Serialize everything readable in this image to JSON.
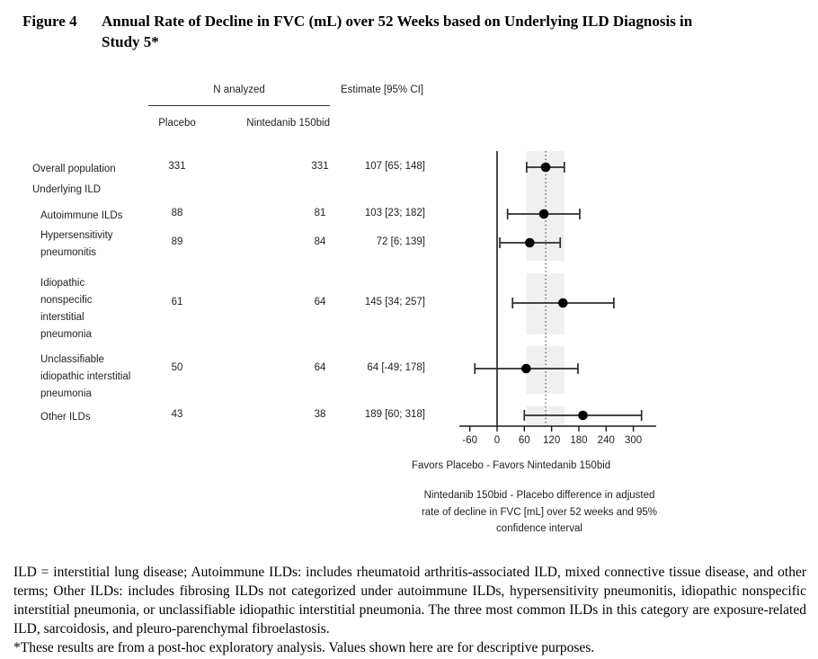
{
  "title": {
    "prefix": "Figure 4",
    "text": "Annual Rate of Decline in FVC (mL) over 52 Weeks based on Underlying ILD Diagnosis in\nStudy 5*"
  },
  "table": {
    "group_header": "N analyzed",
    "estimate_header": "Estimate [95% CI]",
    "col_placebo": "Placebo",
    "col_nintedanib": "Nintedanib 150bid",
    "section_label": "Underlying ILD"
  },
  "chart_data": {
    "type": "forest",
    "title": "Annual Rate of Decline in FVC (mL) over 52 Weeks based on Underlying ILD Diagnosis in Study 5*",
    "x_ticks": [
      -60,
      0,
      60,
      120,
      180,
      240,
      300
    ],
    "xlim": [
      -85,
      350
    ],
    "reference_line": 0,
    "overall_dotted_line": 107,
    "overall_shaded_band": [
      65,
      148
    ],
    "rows": [
      {
        "label": "Overall population",
        "placebo_n": "331",
        "nintedanib_n": "331",
        "estimate_text": "107 [65; 148]",
        "estimate": 107,
        "ci_low": 65,
        "ci_high": 148
      },
      {
        "label": "Autoimmune ILDs",
        "placebo_n": "88",
        "nintedanib_n": "81",
        "estimate_text": "103 [23; 182]",
        "estimate": 103,
        "ci_low": 23,
        "ci_high": 182
      },
      {
        "label": "Hypersensitivity\npneumonitis",
        "placebo_n": "89",
        "nintedanib_n": "84",
        "estimate_text": "72 [6; 139]",
        "estimate": 72,
        "ci_low": 6,
        "ci_high": 139
      },
      {
        "label": "Idiopathic\nnonspecific\ninterstitial\npneumonia",
        "placebo_n": "61",
        "nintedanib_n": "64",
        "estimate_text": "145 [34; 257]",
        "estimate": 145,
        "ci_low": 34,
        "ci_high": 257
      },
      {
        "label": "Unclassifiable\nidiopathic interstitial\npneumonia",
        "placebo_n": "50",
        "nintedanib_n": "64",
        "estimate_text": "64 [-49; 178]",
        "estimate": 64,
        "ci_low": -49,
        "ci_high": 178
      },
      {
        "label": "Other ILDs",
        "placebo_n": "43",
        "nintedanib_n": "38",
        "estimate_text": "189 [60; 318]",
        "estimate": 189,
        "ci_low": 60,
        "ci_high": 318
      }
    ],
    "favors_label": "Favors Placebo  - Favors Nintedanib 150bid",
    "caption": "Nintedanib 150bid - Placebo difference in adjusted\nrate of decline in FVC [mL] over 52 weeks and 95%\nconfidence interval",
    "colors": {
      "band": "#f0f0f0",
      "line": "#2b2b2b",
      "marker": "#000000",
      "axis": "#1a1a1a",
      "dotted": "#5a5a5a"
    }
  },
  "footnotes": {
    "definitions": "ILD = interstitial lung disease; Autoimmune ILDs: includes rheumatoid arthritis-associated ILD, mixed connective tissue disease, and other terms; Other ILDs: includes fibrosing ILDs not categorized under autoimmune ILDs, hypersensitivity pneumonitis, idiopathic nonspecific interstitial pneumonia, or unclassifiable idiopathic interstitial pneumonia. The three most common ILDs in this category are exposure-related ILD, sarcoidosis, and pleuro-parenchymal fibroelastosis.",
    "asterisk": "*These results are from a post-hoc exploratory analysis. Values shown here are for descriptive purposes."
  }
}
